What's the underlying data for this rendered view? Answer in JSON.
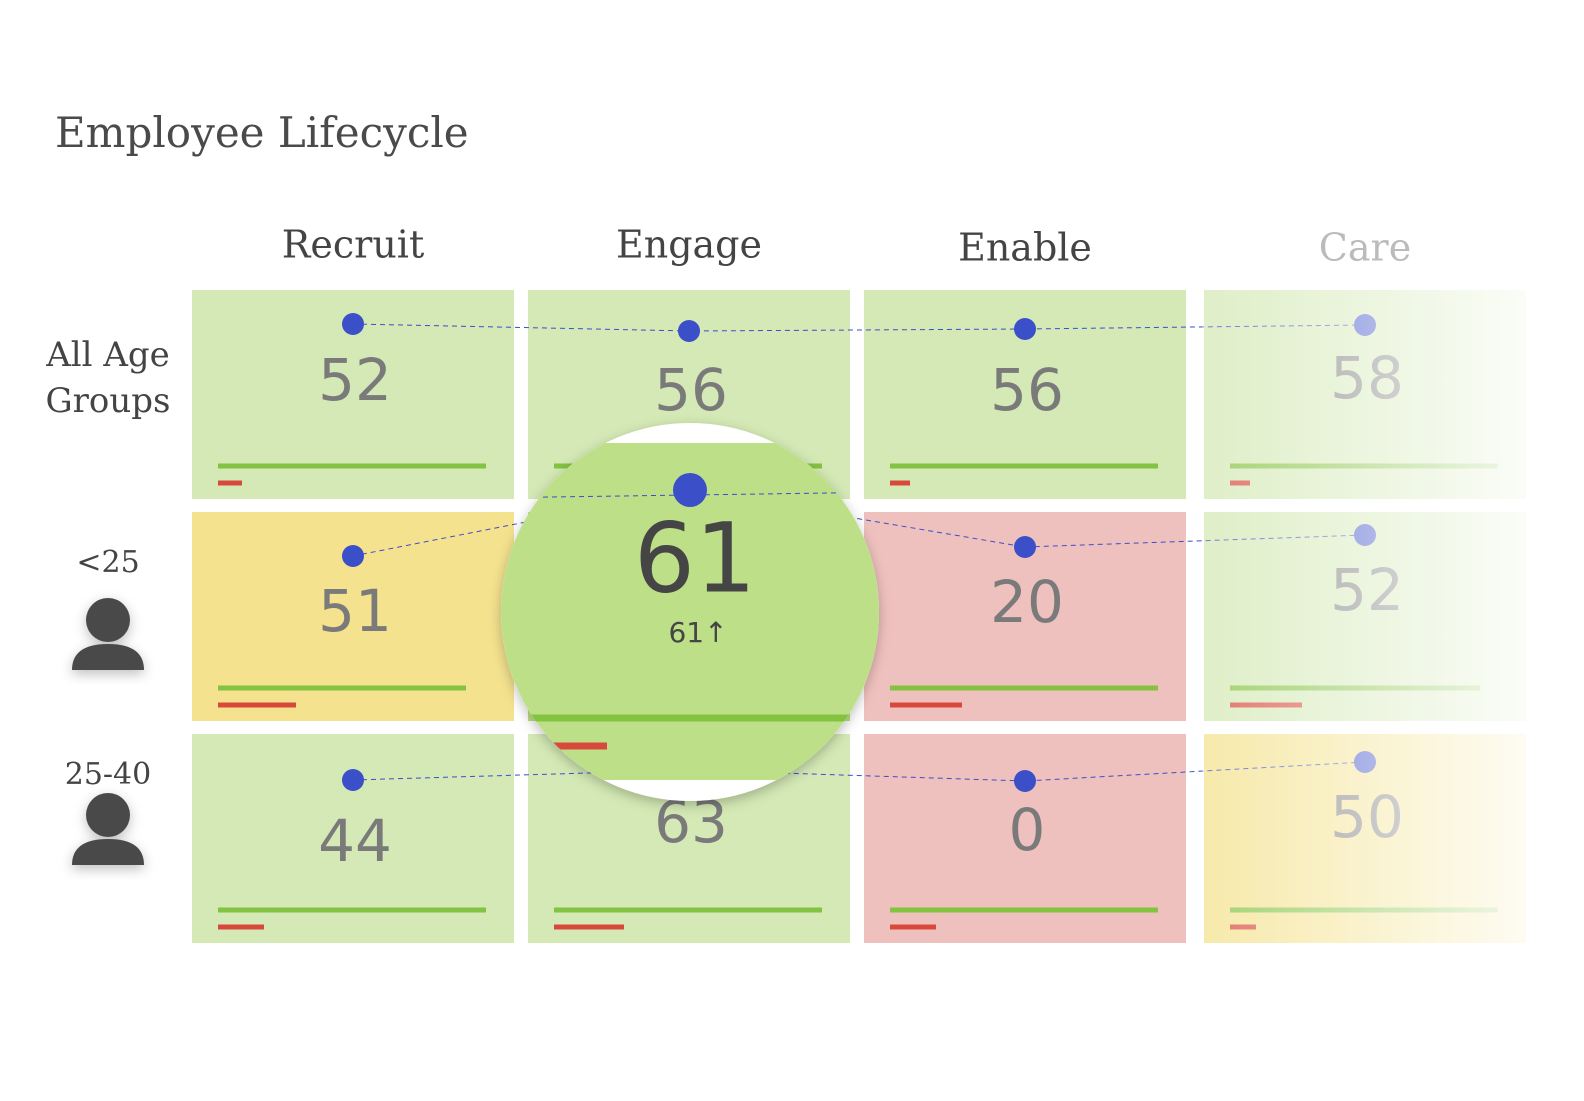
{
  "title": "Employee Lifecycle",
  "columns": [
    "Recruit",
    "Engage",
    "Enable",
    "Care"
  ],
  "rows": [
    {
      "label": "All Age Groups",
      "cells": [
        {
          "value": 52,
          "color": "#d4e9b5"
        },
        {
          "value": 56,
          "color": "#d4e9b5"
        },
        {
          "value": 56,
          "color": "#d4e9b5"
        },
        {
          "value": 58,
          "color": "#d4e9b5"
        }
      ]
    },
    {
      "label": "<25",
      "cells": [
        {
          "value": 51,
          "color": "#f4e28e"
        },
        {
          "value": 61,
          "color": "#bcdf88",
          "change_label": "61↑"
        },
        {
          "value": 20,
          "color": "#efc1be"
        },
        {
          "value": 52,
          "color": "#d4e9b5"
        }
      ]
    },
    {
      "label": "25-40",
      "cells": [
        {
          "value": 44,
          "color": "#d4e9b5"
        },
        {
          "value": 63,
          "color": "#d4e9b5"
        },
        {
          "value": 0,
          "color": "#efc1be"
        },
        {
          "value": 50,
          "color": "#f4e28e"
        }
      ]
    }
  ]
}
